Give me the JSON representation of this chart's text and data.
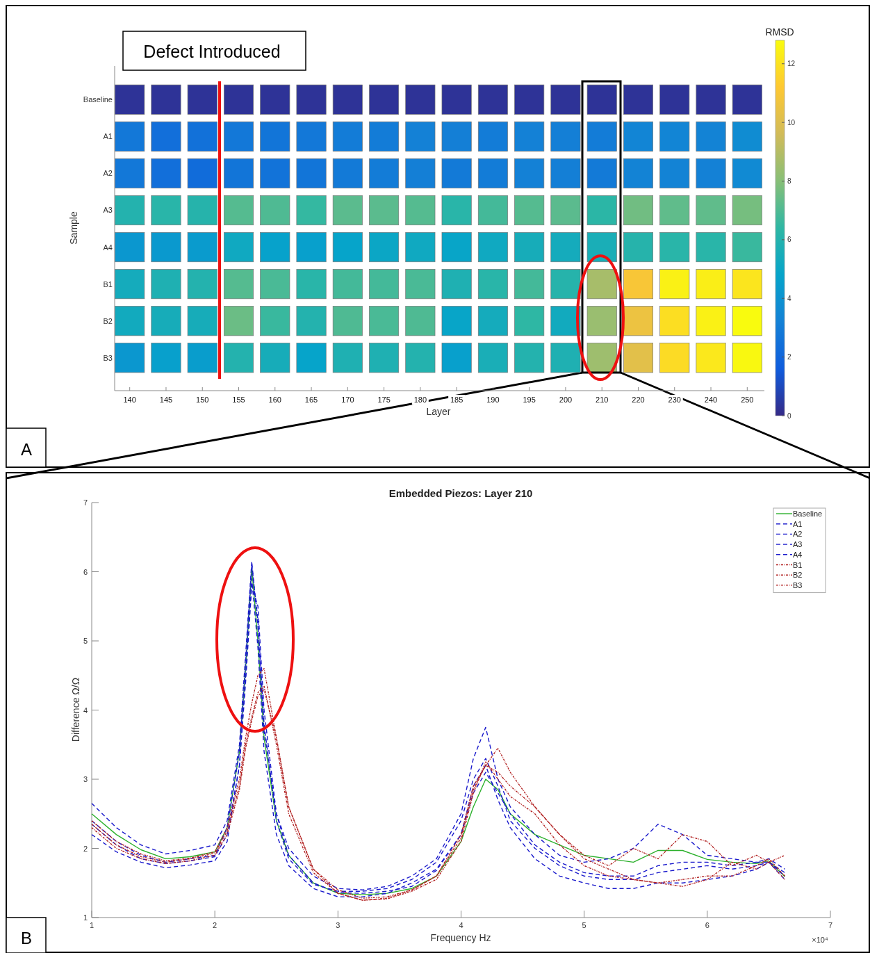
{
  "chart_data": [
    {
      "type": "heatmap",
      "xlabel": "Layer",
      "ylabel": "Sample",
      "clabel": "RMSD",
      "categories": [
        "140",
        "145",
        "150",
        "155",
        "160",
        "165",
        "170",
        "175",
        "180",
        "185",
        "190",
        "195",
        "200",
        "210",
        "220",
        "230",
        "240",
        "250"
      ],
      "y_categories": [
        "Baseline",
        "A1",
        "A2",
        "A3",
        "A4",
        "B1",
        "B2",
        "B3"
      ],
      "cells": [
        [
          0.3,
          0.3,
          0.3,
          0.3,
          0.3,
          0.3,
          0.3,
          0.3,
          0.3,
          0.3,
          0.3,
          0.3,
          0.3,
          0.3,
          0.3,
          0.3,
          0.3,
          0.3
        ],
        [
          2.8,
          2.4,
          2.5,
          2.8,
          2.7,
          2.8,
          3.0,
          3.0,
          3.2,
          3.1,
          3.0,
          3.2,
          3.1,
          3.0,
          3.4,
          3.4,
          3.3,
          3.7
        ],
        [
          2.8,
          2.4,
          2.3,
          2.7,
          2.6,
          2.7,
          2.9,
          3.0,
          3.1,
          2.9,
          3.0,
          3.2,
          3.1,
          2.9,
          3.3,
          3.3,
          3.2,
          3.6
        ],
        [
          6.0,
          6.2,
          6.1,
          7.1,
          7.0,
          6.5,
          7.2,
          7.2,
          7.1,
          6.2,
          6.8,
          7.1,
          7.2,
          6.3,
          7.6,
          7.3,
          7.3,
          7.7
        ],
        [
          4.2,
          4.3,
          4.4,
          5.2,
          4.7,
          4.6,
          4.8,
          5.0,
          5.2,
          4.9,
          5.2,
          5.5,
          5.4,
          5.6,
          6.1,
          6.2,
          6.2,
          6.6
        ],
        [
          5.4,
          5.8,
          6.0,
          7.1,
          6.9,
          6.2,
          6.8,
          6.8,
          6.9,
          5.8,
          6.2,
          6.8,
          6.1,
          8.7,
          11.0,
          12.5,
          12.4,
          12.1
        ],
        [
          5.3,
          5.5,
          5.5,
          7.5,
          6.6,
          6.0,
          7.0,
          6.9,
          7.0,
          4.9,
          5.4,
          6.4,
          5.3,
          8.4,
          10.6,
          11.9,
          12.5,
          12.8
        ],
        [
          4.2,
          4.6,
          4.5,
          6.0,
          5.5,
          4.8,
          5.8,
          5.8,
          6.0,
          4.6,
          5.6,
          6.0,
          5.8,
          8.5,
          10.2,
          11.8,
          12.2,
          12.7
        ]
      ],
      "clim": [
        0,
        12.8
      ],
      "cticks": [
        0,
        2,
        4,
        6,
        8,
        10,
        12
      ],
      "annotations": [
        "Defect Introduced",
        "A"
      ]
    },
    {
      "type": "line",
      "title": "Embedded Piezos: Layer 210",
      "xlabel": "Frequency Hz",
      "ylabel": "Difference Ω/Ω",
      "x": [
        1.0,
        1.2,
        1.4,
        1.6,
        1.8,
        2.0,
        2.1,
        2.2,
        2.25,
        2.3,
        2.35,
        2.4,
        2.5,
        2.6,
        2.8,
        3.0,
        3.2,
        3.4,
        3.6,
        3.8,
        4.0,
        4.1,
        4.2,
        4.3,
        4.4,
        4.6,
        4.8,
        5.0,
        5.2,
        5.4,
        5.6,
        5.8,
        6.0,
        6.2,
        6.4,
        6.5,
        6.63
      ],
      "xlim": [
        1,
        7
      ],
      "xticks": [
        1,
        2,
        3,
        4,
        5,
        6,
        7
      ],
      "ylim": [
        1,
        7
      ],
      "yticks": [
        1,
        2,
        3,
        4,
        5,
        6,
        7
      ],
      "legend": "top right",
      "series": [
        {
          "name": "Baseline",
          "color": "#2db12d",
          "line_style": "solid",
          "values": [
            2.5,
            2.2,
            1.98,
            1.85,
            1.88,
            1.95,
            2.3,
            3.4,
            4.6,
            6.05,
            5.0,
            3.6,
            2.4,
            1.9,
            1.5,
            1.35,
            1.33,
            1.35,
            1.42,
            1.6,
            2.1,
            2.6,
            3.0,
            2.85,
            2.5,
            2.2,
            2.05,
            1.9,
            1.85,
            1.8,
            1.97,
            1.97,
            1.84,
            1.8,
            1.78,
            1.82,
            1.59
          ]
        },
        {
          "name": "A1",
          "color": "#1a1acc",
          "line_style": "dashed",
          "values": [
            2.65,
            2.3,
            2.05,
            1.92,
            1.97,
            2.05,
            2.4,
            3.5,
            4.8,
            6.15,
            5.2,
            3.7,
            2.5,
            2.0,
            1.6,
            1.42,
            1.4,
            1.45,
            1.6,
            1.85,
            2.5,
            3.3,
            3.75,
            3.0,
            2.6,
            2.2,
            1.9,
            1.8,
            1.85,
            2.0,
            2.35,
            2.2,
            1.9,
            1.85,
            1.8,
            1.8,
            1.65
          ]
        },
        {
          "name": "A2",
          "color": "#1a1acc",
          "line_style": "dashed",
          "values": [
            2.2,
            1.95,
            1.8,
            1.72,
            1.76,
            1.82,
            2.1,
            3.2,
            4.5,
            5.9,
            4.9,
            3.4,
            2.2,
            1.75,
            1.42,
            1.3,
            1.3,
            1.35,
            1.5,
            1.7,
            2.2,
            2.9,
            3.2,
            2.7,
            2.3,
            1.85,
            1.6,
            1.5,
            1.42,
            1.42,
            1.5,
            1.5,
            1.55,
            1.6,
            1.7,
            1.8,
            1.6
          ]
        },
        {
          "name": "A3",
          "color": "#1a1acc",
          "line_style": "dashed",
          "values": [
            2.4,
            2.1,
            1.9,
            1.8,
            1.85,
            1.9,
            2.3,
            3.4,
            4.7,
            6.1,
            5.3,
            3.8,
            2.4,
            1.85,
            1.48,
            1.38,
            1.38,
            1.42,
            1.55,
            1.8,
            2.4,
            3.0,
            3.3,
            2.9,
            2.4,
            2.0,
            1.75,
            1.6,
            1.55,
            1.55,
            1.65,
            1.7,
            1.75,
            1.7,
            1.75,
            1.8,
            1.55
          ]
        },
        {
          "name": "A4",
          "color": "#1a1acc",
          "line_style": "dashed",
          "values": [
            2.35,
            2.05,
            1.85,
            1.78,
            1.82,
            1.88,
            2.2,
            3.2,
            4.4,
            5.8,
            5.5,
            4.0,
            2.5,
            1.9,
            1.5,
            1.36,
            1.35,
            1.38,
            1.45,
            1.68,
            2.2,
            2.8,
            3.1,
            2.8,
            2.5,
            2.05,
            1.8,
            1.65,
            1.6,
            1.6,
            1.75,
            1.8,
            1.8,
            1.75,
            1.8,
            1.85,
            1.7
          ]
        },
        {
          "name": "B1",
          "color": "#b22222",
          "line_style": "dotted",
          "values": [
            2.4,
            2.1,
            1.92,
            1.82,
            1.86,
            1.95,
            2.3,
            3.0,
            3.6,
            4.1,
            4.5,
            4.6,
            3.6,
            2.6,
            1.7,
            1.4,
            1.28,
            1.3,
            1.4,
            1.6,
            2.2,
            2.9,
            3.2,
            3.45,
            3.1,
            2.6,
            2.2,
            1.9,
            1.75,
            2.0,
            1.85,
            2.2,
            2.1,
            1.75,
            1.9,
            1.8,
            1.9
          ]
        },
        {
          "name": "B2",
          "color": "#b22222",
          "line_style": "dotted",
          "values": [
            2.35,
            2.05,
            1.88,
            1.8,
            1.85,
            1.93,
            2.25,
            2.9,
            3.5,
            3.9,
            4.25,
            4.35,
            3.5,
            2.5,
            1.65,
            1.35,
            1.25,
            1.27,
            1.38,
            1.55,
            2.1,
            2.8,
            3.25,
            3.0,
            2.75,
            2.5,
            2.05,
            1.75,
            1.6,
            1.55,
            1.5,
            1.45,
            1.55,
            1.8,
            1.7,
            1.8,
            1.55
          ]
        },
        {
          "name": "B3",
          "color": "#b22222",
          "line_style": "dotted",
          "values": [
            2.3,
            2.0,
            1.85,
            1.78,
            1.82,
            1.9,
            2.2,
            2.85,
            3.45,
            3.85,
            4.2,
            4.3,
            3.6,
            2.6,
            1.7,
            1.35,
            1.25,
            1.28,
            1.4,
            1.6,
            2.15,
            2.85,
            3.2,
            3.1,
            2.9,
            2.6,
            2.2,
            1.85,
            1.7,
            1.55,
            1.5,
            1.55,
            1.6,
            1.6,
            1.75,
            1.85,
            1.6
          ]
        }
      ],
      "annotations": [
        "B",
        "×10⁴"
      ]
    }
  ]
}
